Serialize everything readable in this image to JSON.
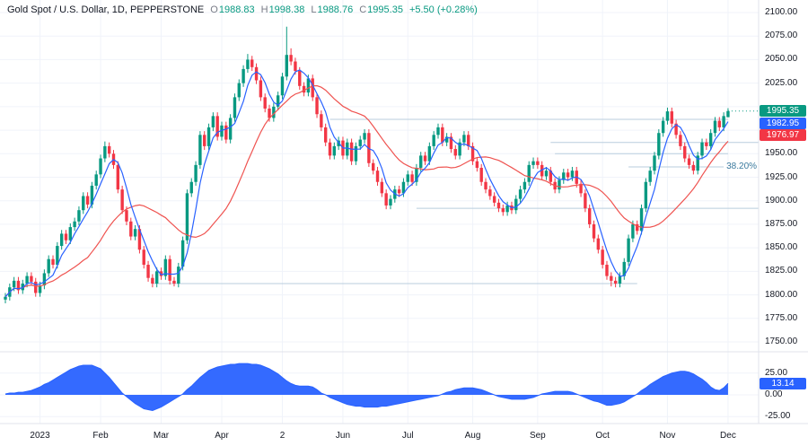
{
  "header": {
    "title": "Gold Spot / U.S. Dollar, 1D, PEPPERSTONE",
    "o_label": "O",
    "o_value": "1988.83",
    "h_label": "H",
    "h_value": "1998.38",
    "l_label": "L",
    "l_value": "1988.76",
    "c_label": "C",
    "c_value": "1995.35",
    "change": "+5.50 (+0.28%)"
  },
  "badges": {
    "last": "1995.35",
    "ma_fast": "1982.95",
    "ma_slow": "1976.97",
    "indicator": "13.14"
  },
  "fib_label": "38.20%",
  "colors": {
    "up": "#089981",
    "down": "#f23645",
    "ma_fast": "#2962ff",
    "ma_slow": "#ef5350",
    "indicator": "#2962ff",
    "badge_last": "#089981",
    "badge_fast": "#2962ff",
    "badge_slow": "#f23645",
    "badge_indicator": "#2962ff",
    "grid": "#f0f3fa",
    "level_line": "#b9cede",
    "axis_border": "#e0e3eb",
    "fib_text": "#3b7a9e",
    "axis_text": "#131722"
  },
  "price_axis": {
    "labels": [
      {
        "text": "2100.00",
        "price": 2100
      },
      {
        "text": "2075.00",
        "price": 2075
      },
      {
        "text": "2050.00",
        "price": 2050
      },
      {
        "text": "2025.00",
        "price": 2025
      },
      {
        "text": "1950.00",
        "price": 1950
      },
      {
        "text": "1925.00",
        "price": 1925
      },
      {
        "text": "1900.00",
        "price": 1900
      },
      {
        "text": "1875.00",
        "price": 1875
      },
      {
        "text": "1850.00",
        "price": 1850
      },
      {
        "text": "1825.00",
        "price": 1825
      },
      {
        "text": "1800.00",
        "price": 1800
      },
      {
        "text": "1775.00",
        "price": 1775
      },
      {
        "text": "1750.00",
        "price": 1750
      }
    ]
  },
  "indicator_axis": [
    {
      "text": "25.00",
      "value": 25
    },
    {
      "text": "0.00",
      "value": 0
    },
    {
      "text": "-25.00",
      "value": -25
    }
  ],
  "time_axis": [
    {
      "text": "2023",
      "i": 8
    },
    {
      "text": "Feb",
      "i": 22
    },
    {
      "text": "Mar",
      "i": 36
    },
    {
      "text": "Apr",
      "i": 50
    },
    {
      "text": "2",
      "i": 64
    },
    {
      "text": "Jun",
      "i": 78
    },
    {
      "text": "Jul",
      "i": 93
    },
    {
      "text": "Aug",
      "i": 108
    },
    {
      "text": "Sep",
      "i": 123
    },
    {
      "text": "Oct",
      "i": 138
    },
    {
      "text": "Nov",
      "i": 153
    },
    {
      "text": "Dec",
      "i": 167
    }
  ],
  "chart_data": {
    "type": "candlestick",
    "title": "Gold Spot / U.S. Dollar, 1D, PEPPERSTONE",
    "price_axis_range": [
      1750,
      2100
    ],
    "grid": true,
    "last_close": 1995.35,
    "candles": [
      [
        1795,
        1802,
        1791,
        1798
      ],
      [
        1798,
        1812,
        1794,
        1808
      ],
      [
        1808,
        1819,
        1804,
        1815
      ],
      [
        1815,
        1819,
        1801,
        1805
      ],
      [
        1805,
        1816,
        1801,
        1812
      ],
      [
        1812,
        1824,
        1808,
        1820
      ],
      [
        1820,
        1824,
        1810,
        1814
      ],
      [
        1814,
        1818,
        1798,
        1802
      ],
      [
        1802,
        1814,
        1798,
        1810
      ],
      [
        1810,
        1827,
        1806,
        1823
      ],
      [
        1823,
        1842,
        1819,
        1838
      ],
      [
        1838,
        1842,
        1828,
        1832
      ],
      [
        1832,
        1856,
        1828,
        1852
      ],
      [
        1852,
        1869,
        1848,
        1865
      ],
      [
        1865,
        1869,
        1854,
        1858
      ],
      [
        1858,
        1876,
        1854,
        1872
      ],
      [
        1872,
        1882,
        1868,
        1878
      ],
      [
        1878,
        1894,
        1874,
        1890
      ],
      [
        1890,
        1909,
        1886,
        1905
      ],
      [
        1905,
        1909,
        1892,
        1896
      ],
      [
        1896,
        1920,
        1892,
        1916
      ],
      [
        1916,
        1932,
        1912,
        1928
      ],
      [
        1928,
        1949,
        1924,
        1945
      ],
      [
        1945,
        1963,
        1941,
        1958
      ],
      [
        1958,
        1962,
        1946,
        1950
      ],
      [
        1950,
        1954,
        1934,
        1938
      ],
      [
        1938,
        1942,
        1908,
        1912
      ],
      [
        1912,
        1916,
        1886,
        1890
      ],
      [
        1890,
        1894,
        1874,
        1878
      ],
      [
        1878,
        1882,
        1858,
        1862
      ],
      [
        1862,
        1874,
        1858,
        1870
      ],
      [
        1870,
        1874,
        1844,
        1848
      ],
      [
        1848,
        1852,
        1828,
        1832
      ],
      [
        1832,
        1836,
        1814,
        1818
      ],
      [
        1818,
        1822,
        1808,
        1812
      ],
      [
        1812,
        1829,
        1808,
        1825
      ],
      [
        1825,
        1829,
        1816,
        1820
      ],
      [
        1820,
        1842,
        1816,
        1838
      ],
      [
        1838,
        1842,
        1811,
        1815
      ],
      [
        1815,
        1819,
        1809,
        1812
      ],
      [
        1812,
        1834,
        1808,
        1830
      ],
      [
        1830,
        1862,
        1826,
        1858
      ],
      [
        1858,
        1912,
        1854,
        1908
      ],
      [
        1908,
        1924,
        1904,
        1920
      ],
      [
        1920,
        1942,
        1916,
        1938
      ],
      [
        1938,
        1974,
        1934,
        1970
      ],
      [
        1970,
        1974,
        1954,
        1958
      ],
      [
        1958,
        1982,
        1954,
        1978
      ],
      [
        1978,
        1994,
        1974,
        1990
      ],
      [
        1990,
        1994,
        1964,
        1968
      ],
      [
        1968,
        1984,
        1964,
        1980
      ],
      [
        1980,
        1984,
        1961,
        1965
      ],
      [
        1965,
        1992,
        1961,
        1988
      ],
      [
        1988,
        2014,
        1984,
        2010
      ],
      [
        2010,
        2029,
        2006,
        2025
      ],
      [
        2025,
        2044,
        2021,
        2040
      ],
      [
        2040,
        2056,
        2036,
        2050
      ],
      [
        2050,
        2054,
        2038,
        2042
      ],
      [
        2042,
        2046,
        2024,
        2028
      ],
      [
        2028,
        2032,
        2006,
        2010
      ],
      [
        2010,
        2014,
        1994,
        1998
      ],
      [
        1998,
        2002,
        1984,
        1988
      ],
      [
        1988,
        2004,
        1984,
        2000
      ],
      [
        2000,
        2016,
        1996,
        2012
      ],
      [
        2012,
        2036,
        2008,
        2032
      ],
      [
        2032,
        2085,
        2028,
        2055
      ],
      [
        2055,
        2062,
        2044,
        2048
      ],
      [
        2048,
        2052,
        2034,
        2038
      ],
      [
        2038,
        2042,
        2018,
        2022
      ],
      [
        2022,
        2026,
        2011,
        2015
      ],
      [
        2015,
        2034,
        2011,
        2030
      ],
      [
        2030,
        2034,
        2006,
        2010
      ],
      [
        2010,
        2014,
        1988,
        1992
      ],
      [
        1992,
        1996,
        1974,
        1978
      ],
      [
        1978,
        1982,
        1958,
        1962
      ],
      [
        1962,
        1966,
        1944,
        1948
      ],
      [
        1948,
        1962,
        1944,
        1958
      ],
      [
        1958,
        1968,
        1954,
        1964
      ],
      [
        1964,
        1968,
        1944,
        1948
      ],
      [
        1948,
        1966,
        1944,
        1962
      ],
      [
        1962,
        1966,
        1938,
        1942
      ],
      [
        1942,
        1962,
        1938,
        1958
      ],
      [
        1958,
        1969,
        1954,
        1965
      ],
      [
        1965,
        1976,
        1961,
        1972
      ],
      [
        1972,
        1976,
        1936,
        1940
      ],
      [
        1940,
        1944,
        1928,
        1932
      ],
      [
        1932,
        1936,
        1916,
        1920
      ],
      [
        1920,
        1924,
        1904,
        1908
      ],
      [
        1908,
        1912,
        1891,
        1895
      ],
      [
        1895,
        1906,
        1891,
        1902
      ],
      [
        1902,
        1916,
        1898,
        1912
      ],
      [
        1912,
        1916,
        1904,
        1908
      ],
      [
        1908,
        1924,
        1904,
        1920
      ],
      [
        1920,
        1932,
        1916,
        1928
      ],
      [
        1928,
        1932,
        1916,
        1920
      ],
      [
        1920,
        1939,
        1916,
        1935
      ],
      [
        1935,
        1952,
        1931,
        1948
      ],
      [
        1948,
        1952,
        1938,
        1942
      ],
      [
        1942,
        1962,
        1938,
        1958
      ],
      [
        1958,
        1974,
        1954,
        1970
      ],
      [
        1970,
        1982,
        1966,
        1978
      ],
      [
        1978,
        1982,
        1958,
        1962
      ],
      [
        1962,
        1972,
        1958,
        1968
      ],
      [
        1968,
        1972,
        1951,
        1955
      ],
      [
        1955,
        1959,
        1944,
        1948
      ],
      [
        1948,
        1966,
        1944,
        1962
      ],
      [
        1962,
        1974,
        1958,
        1970
      ],
      [
        1970,
        1974,
        1954,
        1958
      ],
      [
        1958,
        1962,
        1938,
        1942
      ],
      [
        1942,
        1946,
        1931,
        1935
      ],
      [
        1935,
        1939,
        1916,
        1920
      ],
      [
        1920,
        1924,
        1908,
        1912
      ],
      [
        1912,
        1916,
        1901,
        1905
      ],
      [
        1905,
        1909,
        1894,
        1898
      ],
      [
        1898,
        1902,
        1888,
        1892
      ],
      [
        1892,
        1896,
        1884,
        1888
      ],
      [
        1888,
        1899,
        1884,
        1895
      ],
      [
        1895,
        1899,
        1886,
        1890
      ],
      [
        1890,
        1906,
        1886,
        1902
      ],
      [
        1902,
        1916,
        1898,
        1912
      ],
      [
        1912,
        1924,
        1908,
        1920
      ],
      [
        1920,
        1942,
        1916,
        1938
      ],
      [
        1938,
        1946,
        1934,
        1942
      ],
      [
        1942,
        1946,
        1934,
        1938
      ],
      [
        1938,
        1942,
        1922,
        1926
      ],
      [
        1926,
        1936,
        1922,
        1932
      ],
      [
        1932,
        1936,
        1916,
        1920
      ],
      [
        1920,
        1924,
        1908,
        1912
      ],
      [
        1912,
        1926,
        1908,
        1922
      ],
      [
        1922,
        1934,
        1918,
        1930
      ],
      [
        1930,
        1934,
        1921,
        1925
      ],
      [
        1925,
        1936,
        1921,
        1932
      ],
      [
        1932,
        1936,
        1914,
        1918
      ],
      [
        1918,
        1922,
        1904,
        1908
      ],
      [
        1908,
        1912,
        1888,
        1892
      ],
      [
        1892,
        1896,
        1871,
        1875
      ],
      [
        1875,
        1879,
        1856,
        1860
      ],
      [
        1860,
        1864,
        1844,
        1848
      ],
      [
        1848,
        1852,
        1828,
        1832
      ],
      [
        1832,
        1836,
        1816,
        1820
      ],
      [
        1820,
        1824,
        1809,
        1815
      ],
      [
        1815,
        1819,
        1808,
        1812
      ],
      [
        1812,
        1824,
        1808,
        1820
      ],
      [
        1820,
        1839,
        1816,
        1835
      ],
      [
        1835,
        1864,
        1831,
        1860
      ],
      [
        1860,
        1879,
        1856,
        1875
      ],
      [
        1875,
        1879,
        1864,
        1868
      ],
      [
        1868,
        1896,
        1864,
        1892
      ],
      [
        1892,
        1924,
        1888,
        1920
      ],
      [
        1920,
        1936,
        1916,
        1932
      ],
      [
        1932,
        1952,
        1928,
        1948
      ],
      [
        1948,
        1976,
        1944,
        1972
      ],
      [
        1972,
        1989,
        1968,
        1985
      ],
      [
        1985,
        1999,
        1981,
        1995
      ],
      [
        1995,
        1999,
        1978,
        1982
      ],
      [
        1982,
        1986,
        1966,
        1970
      ],
      [
        1970,
        1974,
        1954,
        1958
      ],
      [
        1958,
        1962,
        1941,
        1945
      ],
      [
        1945,
        1949,
        1934,
        1938
      ],
      [
        1938,
        1942,
        1928,
        1932
      ],
      [
        1932,
        1952,
        1928,
        1948
      ],
      [
        1948,
        1966,
        1944,
        1962
      ],
      [
        1962,
        1966,
        1954,
        1958
      ],
      [
        1958,
        1976,
        1954,
        1972
      ],
      [
        1972,
        1989,
        1968,
        1985
      ],
      [
        1985,
        1989,
        1974,
        1978
      ],
      [
        1978,
        1994,
        1974,
        1990
      ],
      [
        1988.83,
        1998.38,
        1988.76,
        1995.35
      ]
    ],
    "moving_averages": [
      {
        "name": "ma-fast",
        "period": 5,
        "color": "#2962ff",
        "last_value": 1982.95
      },
      {
        "name": "ma-slow",
        "period": 20,
        "color": "#ef5350",
        "last_value": 1976.97
      }
    ],
    "levels": [
      {
        "price": 1986.5,
        "from": 75,
        "to": 167
      },
      {
        "price": 1962,
        "from": 126,
        "to": 176
      },
      {
        "price": 1950,
        "from": 127,
        "to": 167
      },
      {
        "price": 1936,
        "from": 144,
        "to": 166,
        "label": "38.20%"
      },
      {
        "price": 1892,
        "from": 95,
        "to": 176
      },
      {
        "price": 1812,
        "from": 34,
        "to": 146
      }
    ],
    "indicator": {
      "type": "area-oscillator",
      "color": "#2962ff",
      "axis_range": [
        -25,
        25
      ],
      "last_value": 13.14,
      "values": [
        1,
        2,
        2,
        3,
        3,
        4,
        5,
        7,
        9,
        12,
        14,
        17,
        20,
        23,
        26,
        29,
        31,
        33,
        34,
        34,
        34,
        32,
        30,
        25,
        20,
        14,
        8,
        2,
        -2,
        -6,
        -10,
        -13,
        -16,
        -17,
        -18,
        -16,
        -14,
        -11,
        -8,
        -5,
        -2,
        1,
        6,
        10,
        15,
        20,
        24,
        28,
        30,
        32,
        33,
        34,
        35,
        35,
        36,
        36,
        36,
        35,
        35,
        34,
        32,
        30,
        27,
        24,
        20,
        16,
        13,
        11,
        10,
        10,
        10,
        9,
        6,
        2,
        0,
        -3,
        -5,
        -7,
        -9,
        -11,
        -12,
        -13,
        -13,
        -14,
        -14,
        -14,
        -14,
        -13,
        -13,
        -12,
        -11,
        -10,
        -9,
        -8,
        -7,
        -6,
        -5,
        -4,
        -3,
        -2,
        -1,
        1,
        3,
        4,
        6,
        7,
        8,
        8,
        8,
        7,
        6,
        4,
        2,
        0,
        -2,
        -3,
        -4,
        -5,
        -5,
        -5,
        -5,
        -4,
        -3,
        -1,
        1,
        2,
        3,
        4,
        4,
        4,
        4,
        3,
        1,
        -1,
        -3,
        -5,
        -7,
        -8,
        -10,
        -12,
        -12,
        -11,
        -10,
        -8,
        -5,
        -2,
        1,
        5,
        8,
        12,
        15,
        18,
        21,
        23,
        25,
        26,
        27,
        27,
        26,
        24,
        21,
        18,
        14,
        9,
        6,
        5,
        8,
        13.14
      ]
    }
  }
}
